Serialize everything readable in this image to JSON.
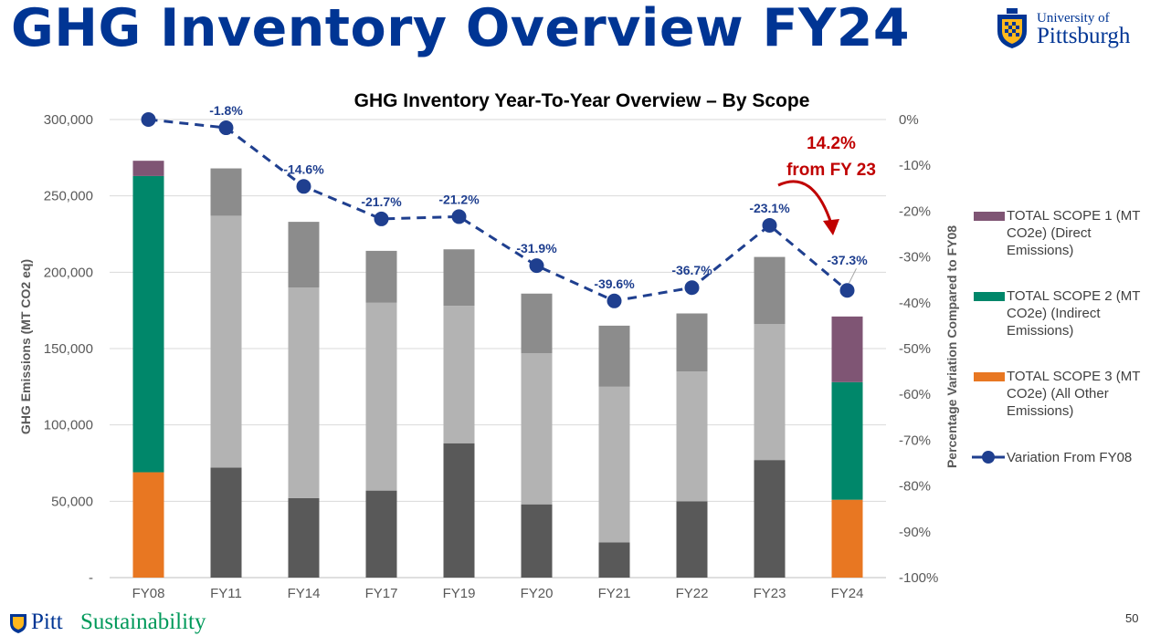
{
  "slide": {
    "title": "GHG Inventory Overview FY24",
    "logo_line1": "University of",
    "logo_line2": "Pittsburgh",
    "footer_word1": "Pitt",
    "footer_word2": "Sustainability",
    "page_number": "50"
  },
  "chart_data": {
    "type": "bar",
    "stacked": true,
    "title": "GHG Inventory Year-To-Year Overview – By Scope",
    "ylabel": "GHG Emissions (MT CO2 eq)",
    "y2label": "Percentage Variation Compared to FY08",
    "ylim": [
      0,
      300000
    ],
    "y2lim": [
      -100,
      0
    ],
    "yticks": [
      "-",
      "50,000",
      "100,000",
      "150,000",
      "200,000",
      "250,000",
      "300,000"
    ],
    "y2ticks": [
      "0%",
      "-10%",
      "-20%",
      "-30%",
      "-40%",
      "-50%",
      "-60%",
      "-70%",
      "-80%",
      "-90%",
      "-100%"
    ],
    "grid": true,
    "legend_position": "right",
    "categories": [
      "FY08",
      "FY11",
      "FY14",
      "FY17",
      "FY19",
      "FY20",
      "FY21",
      "FY22",
      "FY23",
      "FY24"
    ],
    "highlight_categories": [
      "FY08",
      "FY24"
    ],
    "series": [
      {
        "name": "TOTAL SCOPE 3 (MT CO2e) (All Other Emissions)",
        "color": "#e87722",
        "muted_color": "#595959",
        "values": [
          69000,
          72000,
          52000,
          57000,
          88000,
          48000,
          23000,
          50000,
          77000,
          51000
        ]
      },
      {
        "name": "TOTAL SCOPE 2 (MT CO2e) (Indirect Emissions)",
        "color": "#00876a",
        "muted_color": "#b3b3b3",
        "values": [
          194000,
          165000,
          138000,
          123000,
          90000,
          99000,
          102000,
          85000,
          89000,
          77000
        ]
      },
      {
        "name": "TOTAL SCOPE 1 (MT CO2e) (Direct Emissions)",
        "color": "#7f5574",
        "muted_color": "#8c8c8c",
        "values": [
          10000,
          31000,
          43000,
          34000,
          37000,
          39000,
          40000,
          38000,
          44000,
          43000
        ]
      }
    ],
    "line_series": {
      "name": "Variation From FY08",
      "color": "#1f3f8f",
      "axis": "secondary",
      "values": [
        0,
        -1.8,
        -14.6,
        -21.7,
        -21.2,
        -31.9,
        -39.6,
        -36.7,
        -23.1,
        -37.3
      ],
      "labels": [
        "",
        "-1.8%",
        "-14.6%",
        "-21.7%",
        "-21.2%",
        "-31.9%",
        "-39.6%",
        "-36.7%",
        "-23.1%",
        "-37.3%"
      ]
    },
    "annotation": {
      "line1": "14.2%",
      "line2": "from FY 23",
      "color": "#c00000"
    }
  }
}
